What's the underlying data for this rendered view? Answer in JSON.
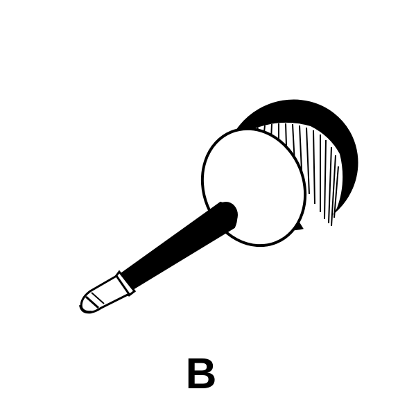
{
  "figure": {
    "caption": "B",
    "subject_icon": "screwdriver-icon"
  },
  "colors": {
    "ink": "#000000",
    "paper": "#ffffff"
  }
}
